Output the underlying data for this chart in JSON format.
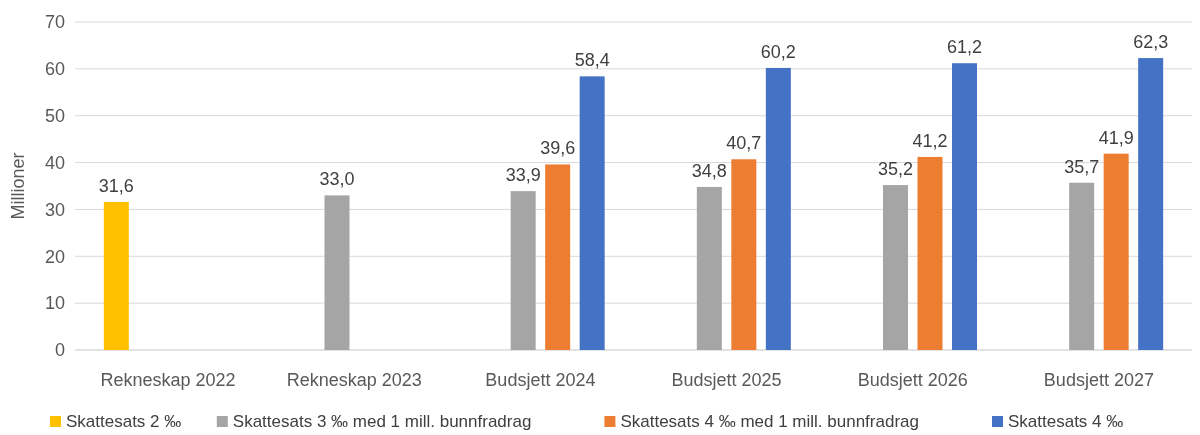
{
  "chart_data": {
    "type": "bar",
    "ylabel": "Millioner",
    "categories": [
      "Rekneskap 2022",
      "Rekneskap 2023",
      "Budsjett 2024",
      "Budsjett 2025",
      "Budsjett 2026",
      "Budsjett 2027"
    ],
    "series": [
      {
        "name": "Skattesats 2 ‰",
        "color": "#ffc000",
        "values": [
          31.6,
          null,
          null,
          null,
          null,
          null
        ],
        "value_labels": [
          "31,6",
          null,
          null,
          null,
          null,
          null
        ]
      },
      {
        "name": "Skattesats 3 ‰ med 1 mill. bunnfradrag",
        "color": "#a5a5a5",
        "values": [
          null,
          33.0,
          33.9,
          34.8,
          35.2,
          35.7
        ],
        "value_labels": [
          null,
          "33,0",
          "33,9",
          "34,8",
          "35,2",
          "35,7"
        ]
      },
      {
        "name": "Skattesats 4 ‰ med 1 mill. bunnfradrag",
        "color": "#ed7d31",
        "values": [
          null,
          null,
          39.6,
          40.7,
          41.2,
          41.9
        ],
        "value_labels": [
          null,
          null,
          "39,6",
          "40,7",
          "41,2",
          "41,9"
        ]
      },
      {
        "name": "Skattesats 4 ‰",
        "color": "#4472c4",
        "values": [
          null,
          null,
          58.4,
          60.2,
          61.2,
          62.3
        ],
        "value_labels": [
          null,
          null,
          "58,4",
          "60,2",
          "61,2",
          "62,3"
        ]
      }
    ],
    "ylim": [
      0,
      70
    ],
    "yticks": [
      0,
      10,
      20,
      30,
      40,
      50,
      60,
      70
    ],
    "grid": "y",
    "legend": "bottom"
  }
}
